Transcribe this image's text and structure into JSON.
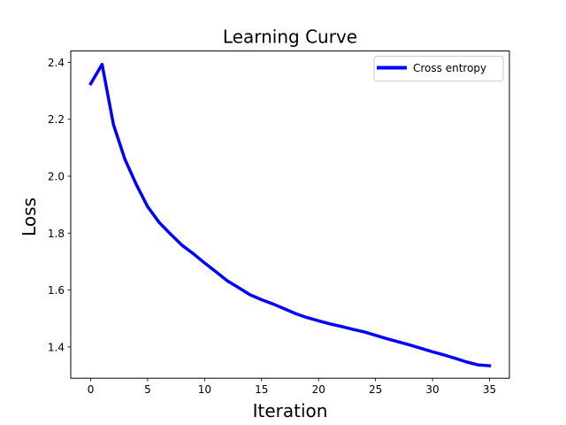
{
  "chart_data": {
    "type": "line",
    "title": "Learning Curve",
    "xlabel": "Iteration",
    "ylabel": "Loss",
    "xlim": [
      -1.75,
      36.75
    ],
    "ylim": [
      1.29,
      2.44
    ],
    "xticks": [
      0,
      5,
      10,
      15,
      20,
      25,
      30,
      35
    ],
    "yticks": [
      1.4,
      1.6,
      1.8,
      2.0,
      2.2,
      2.4
    ],
    "xtick_labels": [
      "0",
      "5",
      "10",
      "15",
      "20",
      "25",
      "30",
      "35"
    ],
    "ytick_labels": [
      "1.4",
      "1.6",
      "1.8",
      "2.0",
      "2.2",
      "2.4"
    ],
    "grid": false,
    "legend_position": "upper right",
    "series": [
      {
        "name": "Cross entropy",
        "color": "#0000ff",
        "x": [
          0,
          1,
          2,
          3,
          4,
          5,
          6,
          7,
          8,
          9,
          10,
          11,
          12,
          13,
          14,
          15,
          16,
          17,
          18,
          19,
          20,
          21,
          22,
          23,
          24,
          25,
          26,
          27,
          28,
          29,
          30,
          31,
          32,
          33,
          34,
          35
        ],
        "y": [
          2.325,
          2.393,
          2.181,
          2.06,
          1.971,
          1.893,
          1.838,
          1.797,
          1.758,
          1.728,
          1.695,
          1.664,
          1.632,
          1.608,
          1.583,
          1.566,
          1.551,
          1.534,
          1.517,
          1.503,
          1.492,
          1.481,
          1.472,
          1.462,
          1.453,
          1.441,
          1.429,
          1.418,
          1.407,
          1.395,
          1.383,
          1.372,
          1.36,
          1.347,
          1.337,
          1.334
        ]
      }
    ]
  }
}
